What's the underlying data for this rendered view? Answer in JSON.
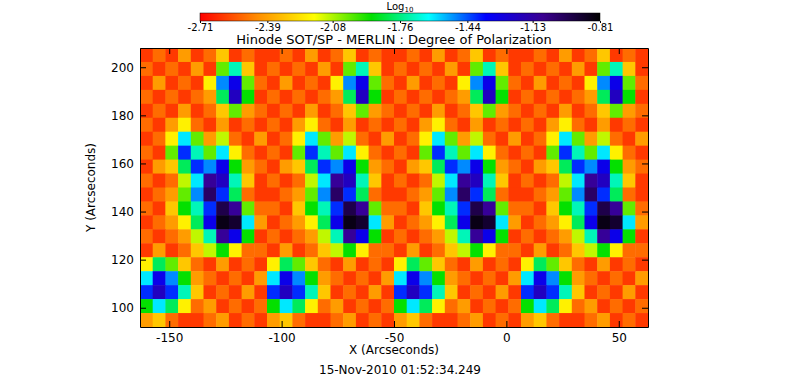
{
  "chart_data": {
    "type": "heatmap",
    "title": "Hinode SOT/SP - MERLIN : Degree of Polarization",
    "subtitle": "15-Nov-2010 01:52:34.249",
    "x_label": "X (Arcseconds)",
    "y_label": "Y (Arcseconds)",
    "xlim": [
      -163,
      63
    ],
    "ylim": [
      92,
      208
    ],
    "xticks": [
      -150,
      -100,
      -50,
      0,
      50
    ],
    "yticks": [
      100,
      120,
      140,
      160,
      180,
      200
    ],
    "log": true,
    "colorbar": {
      "title": "Log",
      "title_subscript": "10",
      "range": [
        -2.71,
        -0.81
      ],
      "ticks": [
        -2.71,
        -2.39,
        -2.08,
        -1.76,
        -1.44,
        -1.13,
        -0.81
      ]
    },
    "z": [
      [
        -2.6,
        -2.5,
        -2.6,
        -2.4,
        -2.6,
        -2.5,
        -2.3,
        -2.6,
        -2.5,
        -2.6,
        -2.6,
        -2.5,
        -2.6,
        -2.4,
        -2.6,
        -2.5,
        -2.3,
        -2.6,
        -2.5,
        -2.6,
        -2.6,
        -2.5,
        -2.6,
        -2.4,
        -2.6,
        -2.5,
        -2.3,
        -2.6,
        -2.5,
        -2.6,
        -2.6,
        -2.5,
        -2.6,
        -2.4,
        -2.6,
        -2.5,
        -2.3,
        -2.6,
        -2.5,
        -2.6
      ],
      [
        -2.5,
        -2.6,
        -2.5,
        -2.6,
        -2.4,
        -2.6,
        -2.0,
        -1.7,
        -2.3,
        -2.6,
        -2.5,
        -2.6,
        -2.5,
        -2.6,
        -2.4,
        -2.6,
        -2.0,
        -1.7,
        -2.3,
        -2.6,
        -2.5,
        -2.6,
        -2.5,
        -2.6,
        -2.4,
        -2.6,
        -2.0,
        -1.7,
        -2.3,
        -2.6,
        -2.5,
        -2.6,
        -2.5,
        -2.6,
        -2.4,
        -2.6,
        -2.0,
        -1.7,
        -2.3,
        -2.6
      ],
      [
        -2.6,
        -2.4,
        -2.6,
        -2.5,
        -2.6,
        -2.2,
        -1.5,
        -1.3,
        -2.0,
        -2.5,
        -2.6,
        -2.4,
        -2.6,
        -2.5,
        -2.6,
        -2.2,
        -1.5,
        -1.3,
        -2.0,
        -2.5,
        -2.6,
        -2.4,
        -2.6,
        -2.5,
        -2.6,
        -2.2,
        -1.5,
        -1.3,
        -2.0,
        -2.5,
        -2.6,
        -2.4,
        -2.6,
        -2.5,
        -2.6,
        -2.2,
        -1.5,
        -1.3,
        -2.0,
        -2.5
      ],
      [
        -2.5,
        -2.6,
        -2.5,
        -2.6,
        -2.5,
        -2.4,
        -1.8,
        -1.2,
        -1.9,
        -2.6,
        -2.5,
        -2.6,
        -2.5,
        -2.6,
        -2.5,
        -2.4,
        -1.8,
        -1.2,
        -1.9,
        -2.6,
        -2.5,
        -2.6,
        -2.5,
        -2.6,
        -2.5,
        -2.4,
        -1.8,
        -1.2,
        -1.9,
        -2.6,
        -2.5,
        -2.6,
        -2.5,
        -2.6,
        -2.5,
        -2.4,
        -1.8,
        -1.2,
        -1.9,
        -2.6
      ],
      [
        -2.6,
        -2.5,
        -2.6,
        -2.4,
        -2.6,
        -2.5,
        -2.3,
        -2.0,
        -2.4,
        -2.5,
        -2.6,
        -2.5,
        -2.6,
        -2.4,
        -2.6,
        -2.5,
        -2.3,
        -2.0,
        -2.4,
        -2.5,
        -2.6,
        -2.5,
        -2.6,
        -2.4,
        -2.6,
        -2.5,
        -2.3,
        -2.0,
        -2.4,
        -2.5,
        -2.6,
        -2.5,
        -2.6,
        -2.4,
        -2.6,
        -2.5,
        -2.3,
        -2.0,
        -2.4,
        -2.5
      ],
      [
        -2.5,
        -2.6,
        -2.4,
        -2.2,
        -2.5,
        -2.6,
        -2.4,
        -2.6,
        -2.5,
        -2.6,
        -2.5,
        -2.6,
        -2.4,
        -2.2,
        -2.5,
        -2.6,
        -2.4,
        -2.6,
        -2.5,
        -2.6,
        -2.5,
        -2.6,
        -2.4,
        -2.2,
        -2.5,
        -2.6,
        -2.4,
        -2.6,
        -2.5,
        -2.6,
        -2.5,
        -2.6,
        -2.4,
        -2.2,
        -2.5,
        -2.6,
        -2.4,
        -2.6,
        -2.5,
        -2.6
      ],
      [
        -2.6,
        -2.5,
        -2.2,
        -1.6,
        -2.0,
        -2.4,
        -2.1,
        -2.5,
        -2.6,
        -2.4,
        -2.6,
        -2.5,
        -2.2,
        -1.6,
        -2.0,
        -2.4,
        -2.1,
        -2.5,
        -2.6,
        -2.4,
        -2.6,
        -2.5,
        -2.2,
        -1.6,
        -2.0,
        -2.4,
        -2.1,
        -2.5,
        -2.6,
        -2.4,
        -2.6,
        -2.5,
        -2.2,
        -1.6,
        -2.0,
        -2.4,
        -2.1,
        -2.5,
        -2.6,
        -2.4
      ],
      [
        -2.5,
        -2.6,
        -2.0,
        -1.4,
        -1.7,
        -2.0,
        -1.6,
        -2.2,
        -2.5,
        -2.6,
        -2.5,
        -2.6,
        -2.0,
        -1.4,
        -1.7,
        -2.0,
        -1.6,
        -2.2,
        -2.5,
        -2.6,
        -2.5,
        -2.6,
        -2.0,
        -1.4,
        -1.7,
        -2.0,
        -1.6,
        -2.2,
        -2.5,
        -2.6,
        -2.5,
        -2.6,
        -2.0,
        -1.4,
        -1.7,
        -2.0,
        -1.6,
        -2.2,
        -2.5,
        -2.6
      ],
      [
        -2.6,
        -2.4,
        -2.3,
        -1.8,
        -1.4,
        -1.5,
        -1.3,
        -1.9,
        -2.4,
        -2.5,
        -2.6,
        -2.4,
        -2.3,
        -1.8,
        -1.4,
        -1.5,
        -1.3,
        -1.9,
        -2.4,
        -2.5,
        -2.6,
        -2.4,
        -2.3,
        -1.8,
        -1.4,
        -1.5,
        -1.3,
        -1.9,
        -2.4,
        -2.5,
        -2.6,
        -2.4,
        -2.3,
        -1.8,
        -1.4,
        -1.5,
        -1.3,
        -1.9,
        -2.4,
        -2.5
      ],
      [
        -2.5,
        -2.6,
        -2.5,
        -2.1,
        -1.6,
        -1.1,
        -1.2,
        -1.7,
        -2.3,
        -2.6,
        -2.5,
        -2.6,
        -2.5,
        -2.1,
        -1.6,
        -1.1,
        -1.2,
        -1.7,
        -2.3,
        -2.6,
        -2.5,
        -2.6,
        -2.5,
        -2.1,
        -1.6,
        -1.1,
        -1.2,
        -1.7,
        -2.3,
        -2.6,
        -2.5,
        -2.6,
        -2.5,
        -2.1,
        -1.6,
        -1.1,
        -1.2,
        -1.7,
        -2.3,
        -2.6
      ],
      [
        -2.6,
        -2.5,
        -2.4,
        -2.0,
        -1.5,
        -1.0,
        -1.4,
        -1.8,
        -2.5,
        -2.6,
        -2.6,
        -2.5,
        -2.4,
        -2.0,
        -1.5,
        -1.0,
        -1.4,
        -1.8,
        -2.5,
        -2.6,
        -2.6,
        -2.5,
        -2.4,
        -2.0,
        -1.5,
        -1.0,
        -1.4,
        -1.8,
        -2.5,
        -2.6,
        -2.6,
        -2.5,
        -2.4,
        -2.0,
        -1.5,
        -1.0,
        -1.4,
        -1.8,
        -2.5,
        -2.6
      ],
      [
        -2.5,
        -2.6,
        -2.3,
        -1.9,
        -1.7,
        -1.4,
        -0.95,
        -1.1,
        -2.0,
        -2.5,
        -2.5,
        -2.6,
        -2.3,
        -1.9,
        -1.7,
        -1.4,
        -0.95,
        -1.1,
        -2.0,
        -2.5,
        -2.5,
        -2.6,
        -2.3,
        -1.9,
        -1.7,
        -1.4,
        -0.95,
        -1.1,
        -2.0,
        -2.5,
        -2.5,
        -2.6,
        -2.3,
        -1.9,
        -1.7,
        -1.4,
        -0.95,
        -1.1,
        -2.0,
        -2.5
      ],
      [
        -2.6,
        -2.5,
        -2.4,
        -2.2,
        -1.8,
        -1.3,
        -0.85,
        -0.9,
        -1.6,
        -2.4,
        -2.6,
        -2.5,
        -2.4,
        -2.2,
        -1.8,
        -1.3,
        -0.85,
        -0.9,
        -1.6,
        -2.4,
        -2.6,
        -2.5,
        -2.4,
        -2.2,
        -1.8,
        -1.3,
        -0.85,
        -0.9,
        -1.6,
        -2.4,
        -2.6,
        -2.5,
        -2.4,
        -2.2,
        -1.8,
        -1.3,
        -0.85,
        -0.9,
        -1.6,
        -2.4
      ],
      [
        -2.5,
        -2.6,
        -2.5,
        -2.4,
        -2.1,
        -1.7,
        -1.1,
        -1.3,
        -1.9,
        -2.6,
        -2.5,
        -2.6,
        -2.5,
        -2.4,
        -2.1,
        -1.7,
        -1.1,
        -1.3,
        -1.9,
        -2.6,
        -2.5,
        -2.6,
        -2.5,
        -2.4,
        -2.1,
        -1.7,
        -1.1,
        -1.3,
        -1.9,
        -2.6,
        -2.5,
        -2.6,
        -2.5,
        -2.4,
        -2.1,
        -1.7,
        -1.1,
        -1.3,
        -1.9,
        -2.6
      ],
      [
        -2.6,
        -2.4,
        -2.6,
        -2.5,
        -2.3,
        -2.1,
        -1.9,
        -2.2,
        -2.5,
        -2.5,
        -2.6,
        -2.4,
        -2.6,
        -2.5,
        -2.3,
        -2.1,
        -1.9,
        -2.2,
        -2.5,
        -2.5,
        -2.6,
        -2.4,
        -2.6,
        -2.5,
        -2.3,
        -2.1,
        -1.9,
        -2.2,
        -2.5,
        -2.5,
        -2.6,
        -2.4,
        -2.6,
        -2.5,
        -2.3,
        -2.1,
        -1.9,
        -2.2,
        -2.5,
        -2.5
      ],
      [
        -2.2,
        -1.8,
        -2.0,
        -2.3,
        -2.5,
        -2.6,
        -2.4,
        -2.6,
        -2.5,
        -2.6,
        -2.2,
        -1.8,
        -2.0,
        -2.3,
        -2.5,
        -2.6,
        -2.4,
        -2.6,
        -2.5,
        -2.6,
        -2.2,
        -1.8,
        -2.0,
        -2.3,
        -2.5,
        -2.6,
        -2.4,
        -2.6,
        -2.5,
        -2.6,
        -2.2,
        -1.8,
        -2.0,
        -2.3,
        -2.5,
        -2.6,
        -2.4,
        -2.6,
        -2.5,
        -2.6
      ],
      [
        -1.6,
        -1.3,
        -1.5,
        -1.9,
        -2.4,
        -2.5,
        -2.6,
        -2.5,
        -2.6,
        -2.4,
        -1.6,
        -1.3,
        -1.5,
        -1.9,
        -2.4,
        -2.5,
        -2.6,
        -2.5,
        -2.6,
        -2.4,
        -1.6,
        -1.3,
        -1.5,
        -1.9,
        -2.4,
        -2.5,
        -2.6,
        -2.5,
        -2.6,
        -2.4,
        -1.6,
        -1.3,
        -1.5,
        -1.9,
        -2.4,
        -2.5,
        -2.6,
        -2.5,
        -2.6,
        -2.4
      ],
      [
        -1.4,
        -1.2,
        -1.4,
        -1.7,
        -2.3,
        -2.6,
        -2.5,
        -2.6,
        -2.4,
        -2.6,
        -1.4,
        -1.2,
        -1.4,
        -1.7,
        -2.3,
        -2.6,
        -2.5,
        -2.6,
        -2.4,
        -2.6,
        -1.4,
        -1.2,
        -1.4,
        -1.7,
        -2.3,
        -2.6,
        -2.5,
        -2.6,
        -2.4,
        -2.6,
        -1.4,
        -1.2,
        -1.4,
        -1.7,
        -2.3,
        -2.6,
        -2.5,
        -2.6,
        -2.4,
        -2.6
      ],
      [
        -1.9,
        -1.6,
        -1.8,
        -2.2,
        -2.5,
        -2.4,
        -2.6,
        -2.5,
        -2.6,
        -2.5,
        -1.9,
        -1.6,
        -1.8,
        -2.2,
        -2.5,
        -2.4,
        -2.6,
        -2.5,
        -2.6,
        -2.5,
        -1.9,
        -1.6,
        -1.8,
        -2.2,
        -2.5,
        -2.4,
        -2.6,
        -2.5,
        -2.6,
        -2.5,
        -1.9,
        -1.6,
        -1.8,
        -2.2,
        -2.5,
        -2.4,
        -2.6,
        -2.5,
        -2.6,
        -2.5
      ],
      [
        -2.4,
        -2.3,
        -2.5,
        -2.6,
        -2.6,
        -2.5,
        -2.4,
        -2.6,
        -2.5,
        -2.6,
        -2.4,
        -2.3,
        -2.5,
        -2.6,
        -2.6,
        -2.5,
        -2.4,
        -2.6,
        -2.5,
        -2.6,
        -2.4,
        -2.3,
        -2.5,
        -2.6,
        -2.6,
        -2.5,
        -2.4,
        -2.6,
        -2.5,
        -2.6,
        -2.4,
        -2.3,
        -2.5,
        -2.6,
        -2.6,
        -2.5,
        -2.4,
        -2.6,
        -2.5,
        -2.6
      ]
    ]
  }
}
